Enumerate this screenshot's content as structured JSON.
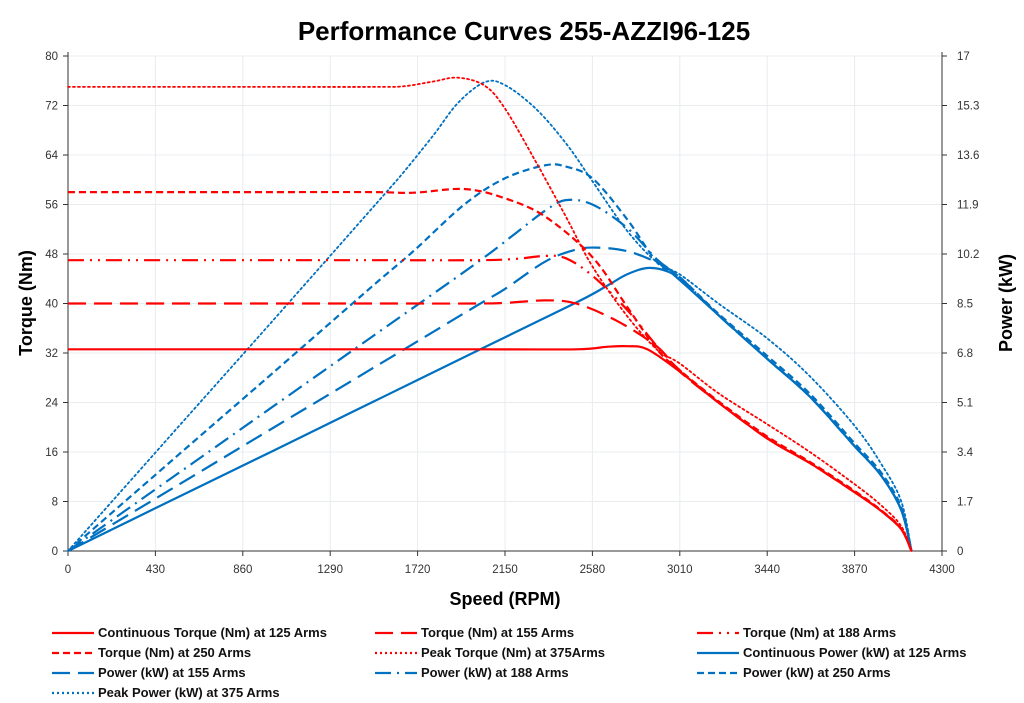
{
  "chart_data": {
    "type": "line",
    "title": "Performance Curves 255-AZZI96-125",
    "xlabel": "Speed (RPM)",
    "ylabel": "Torque (Nm)",
    "y2label": "Power (kW)",
    "xlim": [
      0,
      4300
    ],
    "ylim": [
      0,
      80
    ],
    "y2lim": [
      0,
      17
    ],
    "xticks": [
      "0",
      "430",
      "860",
      "1290",
      "1720",
      "2150",
      "2580",
      "3010",
      "3440",
      "3870",
      "4300"
    ],
    "yticks": [
      "0",
      "8",
      "16",
      "24",
      "32",
      "40",
      "48",
      "56",
      "64",
      "72",
      "80"
    ],
    "y2ticks": [
      "0",
      "1.7",
      "3.4",
      "5.1",
      "6.8",
      "8.5",
      "10.2",
      "11.9",
      "13.6",
      "15.3",
      "17"
    ],
    "grid": true,
    "legend_position": "bottom",
    "colors": {
      "torque": "#ff0000",
      "power": "#0070c0"
    },
    "series": [
      {
        "name": "Continuous Torque (Nm) at 125 Arms",
        "axis": "left",
        "color": "#ff0000",
        "style": "solid",
        "x": [
          0,
          500,
          1000,
          1500,
          2000,
          2500,
          2650,
          2750,
          2850,
          3010,
          3200,
          3440,
          3650,
          3870,
          4000,
          4100,
          4150
        ],
        "y": [
          32.6,
          32.6,
          32.6,
          32.6,
          32.6,
          32.6,
          33.0,
          33.1,
          32.6,
          29.0,
          24.0,
          18.2,
          14.2,
          9.5,
          6.5,
          3.5,
          0
        ]
      },
      {
        "name": "Torque (Nm) at 155 Arms",
        "axis": "left",
        "color": "#ff0000",
        "style": "longdash",
        "x": [
          0,
          500,
          1000,
          1500,
          2000,
          2150,
          2350,
          2500,
          2700,
          2900,
          3010,
          3200,
          3440,
          3650,
          3870,
          4000,
          4100,
          4150
        ],
        "y": [
          40,
          40,
          40,
          40,
          40,
          40.1,
          40.5,
          40.0,
          37.2,
          33.0,
          29.0,
          24.0,
          18.2,
          14.2,
          9.5,
          6.5,
          3.5,
          0
        ]
      },
      {
        "name": "Torque (Nm) at 188 Arms",
        "axis": "left",
        "color": "#ff0000",
        "style": "dashdotdot",
        "x": [
          0,
          500,
          1000,
          1500,
          2000,
          2200,
          2350,
          2450,
          2580,
          2750,
          2900,
          3010,
          3200,
          3440,
          3650,
          3870,
          4000,
          4100,
          4150
        ],
        "y": [
          47,
          47,
          47,
          47,
          47,
          47.2,
          47.7,
          47.3,
          44.5,
          39.0,
          33.0,
          29.2,
          24.0,
          18.3,
          14.2,
          9.5,
          6.5,
          3.5,
          0
        ]
      },
      {
        "name": "Torque (Nm) at 250 Arms",
        "axis": "left",
        "color": "#ff0000",
        "style": "dash",
        "x": [
          0,
          500,
          1000,
          1500,
          1700,
          1950,
          2150,
          2350,
          2580,
          2750,
          2900,
          3010,
          3200,
          3440,
          3650,
          3870,
          4000,
          4100,
          4150
        ],
        "y": [
          58,
          58,
          58,
          58,
          57.9,
          58.5,
          57.0,
          54.0,
          47.5,
          39.5,
          32.5,
          29.2,
          24.2,
          18.5,
          14.4,
          9.7,
          6.6,
          3.6,
          0
        ]
      },
      {
        "name": "Peak Torque (Nm) at 375Arms",
        "axis": "left",
        "color": "#ff0000",
        "style": "dot",
        "x": [
          0,
          500,
          1000,
          1500,
          1650,
          1800,
          1920,
          2050,
          2150,
          2300,
          2450,
          2580,
          2750,
          2900,
          3010,
          3200,
          3440,
          3650,
          3870,
          4000,
          4100,
          4150
        ],
        "y": [
          75,
          75,
          75,
          75,
          75.1,
          75.9,
          76.5,
          75.2,
          71.5,
          63.0,
          54.0,
          46.0,
          38.0,
          32.5,
          30.3,
          25.5,
          20.5,
          16.0,
          10.8,
          7.4,
          4.0,
          0
        ]
      },
      {
        "name": "Continuous Power (kW) at 125 Arms",
        "axis": "right",
        "color": "#0070c0",
        "style": "solid",
        "x": [
          0,
          500,
          1000,
          1500,
          2000,
          2500,
          2650,
          2750,
          2850,
          2950,
          3010,
          3200,
          3440,
          3650,
          3870,
          4000,
          4100,
          4150
        ],
        "y": [
          0,
          1.71,
          3.41,
          5.12,
          6.83,
          8.53,
          9.1,
          9.5,
          9.72,
          9.6,
          9.3,
          8.1,
          6.6,
          5.3,
          3.6,
          2.6,
          1.4,
          0
        ]
      },
      {
        "name": "Power (kW) at 155 Arms",
        "axis": "right",
        "color": "#0070c0",
        "style": "longdash",
        "x": [
          0,
          500,
          1000,
          1500,
          2000,
          2150,
          2350,
          2500,
          2600,
          2750,
          2900,
          3010,
          3200,
          3440,
          3650,
          3870,
          4000,
          4100,
          4150
        ],
        "y": [
          0,
          2.09,
          4.19,
          6.28,
          8.38,
          9.0,
          9.95,
          10.35,
          10.42,
          10.3,
          9.9,
          9.4,
          8.1,
          6.6,
          5.3,
          3.6,
          2.6,
          1.4,
          0
        ]
      },
      {
        "name": "Power (kW) at 188 Arms",
        "axis": "right",
        "color": "#0070c0",
        "style": "dashdot",
        "x": [
          0,
          500,
          1000,
          1500,
          2000,
          2200,
          2350,
          2450,
          2580,
          2750,
          2900,
          3010,
          3200,
          3440,
          3650,
          3870,
          4000,
          4100,
          4150
        ],
        "y": [
          0,
          2.46,
          4.92,
          7.38,
          9.84,
          10.9,
          11.7,
          12.05,
          11.9,
          11.1,
          10.0,
          9.4,
          8.1,
          6.6,
          5.3,
          3.6,
          2.6,
          1.4,
          0
        ]
      },
      {
        "name": "Power (kW) at 250 Arms",
        "axis": "right",
        "color": "#0070c0",
        "style": "dash",
        "x": [
          0,
          500,
          1000,
          1500,
          1700,
          1950,
          2150,
          2350,
          2450,
          2580,
          2750,
          2900,
          3010,
          3200,
          3440,
          3650,
          3870,
          4000,
          4100,
          4150
        ],
        "y": [
          0,
          3.04,
          6.07,
          9.11,
          10.3,
          11.9,
          12.8,
          13.25,
          13.2,
          12.8,
          11.4,
          9.9,
          9.4,
          8.15,
          6.7,
          5.4,
          3.7,
          2.7,
          1.5,
          0
        ]
      },
      {
        "name": "Peak Power (kW) at 375 Arms",
        "axis": "right",
        "color": "#0070c0",
        "style": "dot",
        "x": [
          0,
          500,
          1000,
          1500,
          1650,
          1800,
          1920,
          2050,
          2150,
          2300,
          2450,
          2580,
          2750,
          2900,
          3010,
          3200,
          3440,
          3650,
          3870,
          4000,
          4100,
          4150
        ],
        "y": [
          0,
          3.93,
          7.85,
          11.8,
          13.0,
          14.3,
          15.4,
          16.1,
          16.0,
          15.2,
          14.0,
          12.7,
          11.0,
          9.9,
          9.5,
          8.5,
          7.3,
          6.0,
          4.3,
          3.0,
          1.7,
          0
        ]
      }
    ]
  },
  "legend": [
    {
      "label": "Continuous Torque (Nm) at 125 Arms",
      "series": 0
    },
    {
      "label": "Torque (Nm) at 155 Arms",
      "series": 1
    },
    {
      "label": "Torque (Nm) at 188 Arms",
      "series": 2
    },
    {
      "label": "Torque (Nm) at 250 Arms",
      "series": 3
    },
    {
      "label": "Peak Torque (Nm) at 375Arms",
      "series": 4
    },
    {
      "label": "Continuous Power (kW) at 125 Arms",
      "series": 5
    },
    {
      "label": "Power (kW) at 155 Arms",
      "series": 6
    },
    {
      "label": "Power (kW) at 188 Arms",
      "series": 7
    },
    {
      "label": "Power (kW) at 250 Arms",
      "series": 8
    },
    {
      "label": "Peak Power (kW) at 375 Arms",
      "series": 9
    }
  ]
}
